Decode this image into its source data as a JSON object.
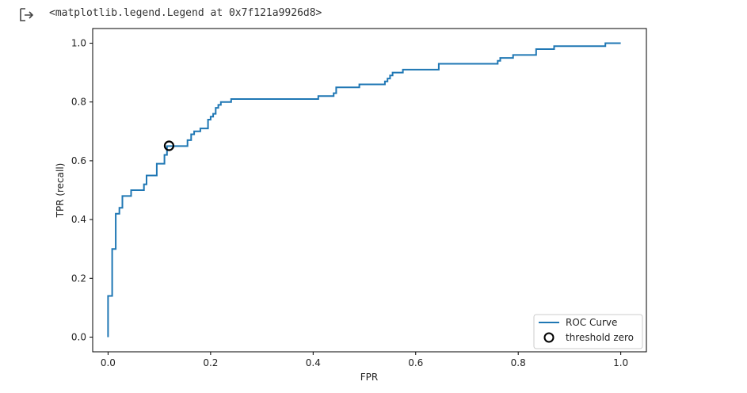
{
  "output": {
    "text": "<matplotlib.legend.Legend at 0x7f121a9926d8>",
    "icon": "output-arrow-icon"
  },
  "chart_data": {
    "type": "line",
    "xlabel": "FPR",
    "ylabel": "TPR (recall)",
    "xlim": [
      -0.03,
      1.05
    ],
    "ylim": [
      -0.05,
      1.05
    ],
    "xticks": [
      0.0,
      0.2,
      0.4,
      0.6,
      0.8,
      1.0
    ],
    "xtick_labels": [
      "0.0",
      "0.2",
      "0.4",
      "0.6",
      "0.8",
      "1.0"
    ],
    "yticks": [
      0.0,
      0.2,
      0.4,
      0.6,
      0.8,
      1.0
    ],
    "ytick_labels": [
      "0.0",
      "0.2",
      "0.4",
      "0.6",
      "0.8",
      "1.0"
    ],
    "grid": false,
    "legend_position": "lower right",
    "legend": [
      "ROC Curve",
      "threshold zero"
    ],
    "series": [
      {
        "name": "ROC Curve",
        "color": "#1f77b4",
        "steps": [
          [
            0.0,
            0.0
          ],
          [
            0.0,
            0.14
          ],
          [
            0.008,
            0.14
          ],
          [
            0.008,
            0.3
          ],
          [
            0.015,
            0.3
          ],
          [
            0.015,
            0.42
          ],
          [
            0.022,
            0.42
          ],
          [
            0.022,
            0.44
          ],
          [
            0.028,
            0.44
          ],
          [
            0.028,
            0.48
          ],
          [
            0.045,
            0.48
          ],
          [
            0.045,
            0.5
          ],
          [
            0.07,
            0.5
          ],
          [
            0.07,
            0.52
          ],
          [
            0.075,
            0.52
          ],
          [
            0.075,
            0.55
          ],
          [
            0.095,
            0.55
          ],
          [
            0.095,
            0.59
          ],
          [
            0.11,
            0.59
          ],
          [
            0.11,
            0.62
          ],
          [
            0.115,
            0.62
          ],
          [
            0.115,
            0.65
          ],
          [
            0.155,
            0.65
          ],
          [
            0.155,
            0.67
          ],
          [
            0.162,
            0.67
          ],
          [
            0.162,
            0.69
          ],
          [
            0.168,
            0.69
          ],
          [
            0.168,
            0.7
          ],
          [
            0.18,
            0.7
          ],
          [
            0.18,
            0.71
          ],
          [
            0.195,
            0.71
          ],
          [
            0.195,
            0.74
          ],
          [
            0.2,
            0.74
          ],
          [
            0.2,
            0.75
          ],
          [
            0.205,
            0.75
          ],
          [
            0.205,
            0.76
          ],
          [
            0.21,
            0.76
          ],
          [
            0.21,
            0.78
          ],
          [
            0.215,
            0.78
          ],
          [
            0.215,
            0.79
          ],
          [
            0.22,
            0.79
          ],
          [
            0.22,
            0.8
          ],
          [
            0.24,
            0.8
          ],
          [
            0.24,
            0.81
          ],
          [
            0.41,
            0.81
          ],
          [
            0.41,
            0.82
          ],
          [
            0.44,
            0.82
          ],
          [
            0.44,
            0.83
          ],
          [
            0.445,
            0.83
          ],
          [
            0.445,
            0.85
          ],
          [
            0.49,
            0.85
          ],
          [
            0.49,
            0.86
          ],
          [
            0.54,
            0.86
          ],
          [
            0.54,
            0.87
          ],
          [
            0.545,
            0.87
          ],
          [
            0.545,
            0.88
          ],
          [
            0.55,
            0.88
          ],
          [
            0.55,
            0.89
          ],
          [
            0.555,
            0.89
          ],
          [
            0.555,
            0.9
          ],
          [
            0.575,
            0.9
          ],
          [
            0.575,
            0.91
          ],
          [
            0.645,
            0.91
          ],
          [
            0.645,
            0.93
          ],
          [
            0.76,
            0.93
          ],
          [
            0.76,
            0.94
          ],
          [
            0.765,
            0.94
          ],
          [
            0.765,
            0.95
          ],
          [
            0.79,
            0.95
          ],
          [
            0.79,
            0.96
          ],
          [
            0.835,
            0.96
          ],
          [
            0.835,
            0.98
          ],
          [
            0.87,
            0.98
          ],
          [
            0.87,
            0.99
          ],
          [
            0.97,
            0.99
          ],
          [
            0.97,
            1.0
          ],
          [
            1.0,
            1.0
          ]
        ]
      }
    ],
    "marker": {
      "name": "threshold zero",
      "x": 0.119,
      "y": 0.651,
      "shape": "o",
      "facecolor": "none",
      "edgecolor": "#000000"
    }
  }
}
